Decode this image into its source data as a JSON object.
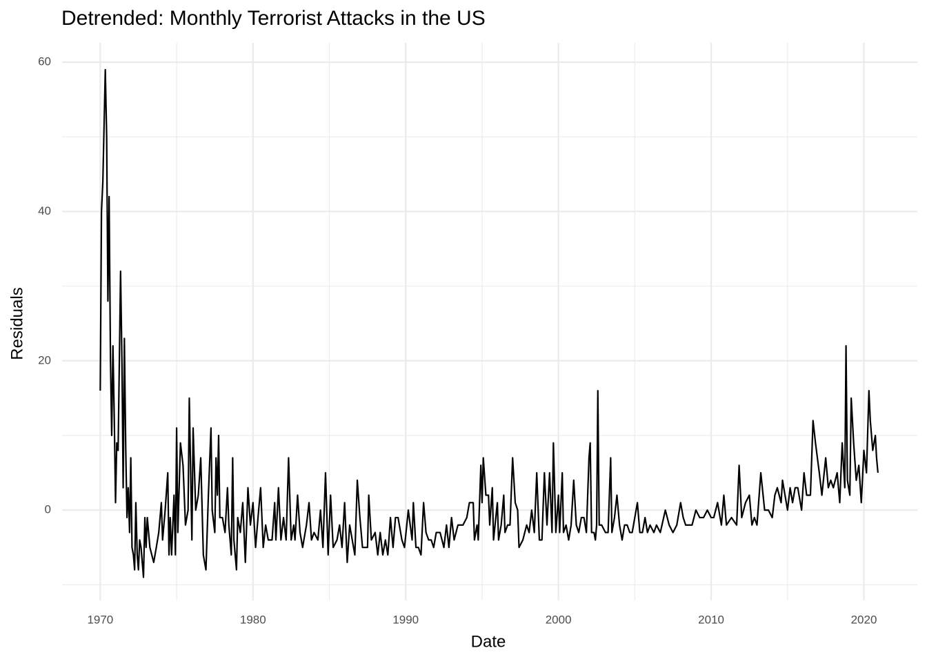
{
  "chart_data": {
    "type": "line",
    "title": "Detrended: Monthly Terrorist Attacks in the US",
    "x_label": "Date",
    "y_label": "Residuals",
    "color": "#000000",
    "grid": true,
    "xlim": [
      1967.5,
      2023.5
    ],
    "xticks": [
      1970,
      1980,
      1990,
      2000,
      2010,
      2020
    ],
    "ylim": [
      -12.1,
      62.6
    ],
    "yticks": [
      0,
      20,
      40,
      60
    ],
    "x": [
      1970.0,
      1970.08,
      1970.17,
      1970.33,
      1970.42,
      1970.5,
      1970.58,
      1970.67,
      1970.75,
      1970.83,
      1970.92,
      1971.0,
      1971.08,
      1971.17,
      1971.25,
      1971.33,
      1971.42,
      1971.5,
      1971.58,
      1971.67,
      1971.75,
      1971.83,
      1971.92,
      1972.0,
      1972.08,
      1972.17,
      1972.25,
      1972.33,
      1972.42,
      1972.5,
      1972.58,
      1972.67,
      1972.83,
      1972.92,
      1973.0,
      1973.08,
      1973.25,
      1973.5,
      1973.67,
      1973.83,
      1974.0,
      1974.08,
      1974.25,
      1974.42,
      1974.5,
      1974.58,
      1974.67,
      1974.83,
      1974.92,
      1975.0,
      1975.08,
      1975.25,
      1975.42,
      1975.58,
      1975.75,
      1975.83,
      1976.0,
      1976.08,
      1976.25,
      1976.42,
      1976.58,
      1976.75,
      1976.92,
      1977.08,
      1977.25,
      1977.33,
      1977.5,
      1977.58,
      1977.67,
      1977.75,
      1977.83,
      1978.0,
      1978.17,
      1978.33,
      1978.42,
      1978.58,
      1978.67,
      1978.75,
      1978.92,
      1979.0,
      1979.17,
      1979.33,
      1979.5,
      1979.67,
      1979.83,
      1980.0,
      1980.17,
      1980.33,
      1980.5,
      1980.67,
      1980.83,
      1981.0,
      1981.25,
      1981.42,
      1981.5,
      1981.67,
      1981.83,
      1982.0,
      1982.17,
      1982.33,
      1982.5,
      1982.67,
      1982.75,
      1982.92,
      1983.08,
      1983.25,
      1983.5,
      1983.67,
      1983.83,
      1984.0,
      1984.25,
      1984.42,
      1984.58,
      1984.75,
      1984.92,
      1985.08,
      1985.25,
      1985.5,
      1985.67,
      1985.83,
      1986.0,
      1986.17,
      1986.33,
      1986.5,
      1986.67,
      1986.83,
      1987.0,
      1987.17,
      1987.5,
      1987.58,
      1987.75,
      1988.0,
      1988.17,
      1988.33,
      1988.5,
      1988.67,
      1988.83,
      1989.0,
      1989.17,
      1989.33,
      1989.5,
      1989.75,
      1989.92,
      1990.17,
      1990.42,
      1990.5,
      1990.67,
      1990.83,
      1991.0,
      1991.17,
      1991.33,
      1991.5,
      1991.67,
      1991.83,
      1992.0,
      1992.25,
      1992.5,
      1992.67,
      1992.83,
      1993.0,
      1993.17,
      1993.42,
      1993.75,
      1994.0,
      1994.17,
      1994.42,
      1994.5,
      1994.67,
      1994.75,
      1994.92,
      1995.0,
      1995.08,
      1995.25,
      1995.42,
      1995.5,
      1995.67,
      1995.75,
      1996.0,
      1996.08,
      1996.25,
      1996.42,
      1996.5,
      1996.67,
      1996.83,
      1997.0,
      1997.17,
      1997.33,
      1997.42,
      1997.67,
      1997.92,
      1998.08,
      1998.25,
      1998.42,
      1998.58,
      1998.75,
      1998.92,
      1999.08,
      1999.25,
      1999.42,
      1999.58,
      1999.67,
      1999.83,
      2000.0,
      2000.08,
      2000.25,
      2000.33,
      2000.5,
      2000.67,
      2000.83,
      2001.0,
      2001.17,
      2001.33,
      2001.5,
      2001.67,
      2001.83,
      2002.0,
      2002.08,
      2002.17,
      2002.33,
      2002.42,
      2002.5,
      2002.58,
      2002.67,
      2002.83,
      2003.08,
      2003.25,
      2003.42,
      2003.5,
      2003.67,
      2003.83,
      2004.0,
      2004.17,
      2004.33,
      2004.5,
      2004.67,
      2004.83,
      2005.17,
      2005.33,
      2005.5,
      2005.67,
      2005.83,
      2006.0,
      2006.25,
      2006.42,
      2006.67,
      2007.0,
      2007.25,
      2007.5,
      2007.75,
      2008.0,
      2008.17,
      2008.33,
      2008.5,
      2008.75,
      2009.0,
      2009.25,
      2009.5,
      2009.75,
      2010.0,
      2010.17,
      2010.42,
      2010.67,
      2010.83,
      2011.0,
      2011.33,
      2011.67,
      2011.83,
      2012.0,
      2012.25,
      2012.5,
      2012.67,
      2012.83,
      2013.0,
      2013.25,
      2013.5,
      2013.75,
      2014.0,
      2014.17,
      2014.33,
      2014.58,
      2014.67,
      2015.0,
      2015.17,
      2015.33,
      2015.5,
      2015.67,
      2015.92,
      2016.08,
      2016.25,
      2016.5,
      2016.67,
      2016.83,
      2017.08,
      2017.25,
      2017.5,
      2017.67,
      2017.83,
      2018.0,
      2018.25,
      2018.42,
      2018.58,
      2018.75,
      2018.83,
      2018.92,
      2019.08,
      2019.17,
      2019.33,
      2019.5,
      2019.67,
      2019.83,
      2020.0,
      2020.17,
      2020.33,
      2020.42,
      2020.58,
      2020.75,
      2020.83,
      2020.92
    ],
    "values": [
      16,
      40,
      44,
      59,
      50,
      28,
      42,
      20,
      10,
      22,
      12,
      1,
      9,
      8,
      20,
      32,
      20,
      3,
      23,
      8,
      -1,
      3,
      -3,
      7,
      -5,
      -6,
      -8,
      1,
      -6,
      -8,
      -4,
      -5,
      -9,
      -1,
      -5,
      -1,
      -5,
      -7,
      -5,
      -3,
      1,
      -4,
      0,
      5,
      -6,
      -1,
      -6,
      2,
      -6,
      11,
      -3,
      9,
      6,
      -2,
      0,
      15,
      -4,
      11,
      0,
      2,
      7,
      -6,
      -8,
      2,
      11,
      0,
      -3,
      7,
      2,
      10,
      -1,
      -1,
      -3,
      3,
      -2,
      -6,
      7,
      -4,
      -8,
      -1,
      -3,
      1,
      -7,
      3,
      -2,
      1,
      -5,
      -1,
      3,
      -5,
      -2,
      -4,
      -4,
      1,
      -4,
      3,
      -4,
      -1,
      -4,
      7,
      -4,
      -2,
      -4,
      2,
      -3,
      -5,
      -2,
      1,
      -4,
      -3,
      -4,
      0,
      -5,
      5,
      -6,
      2,
      -5,
      -4,
      -2,
      -5,
      1,
      -7,
      -2,
      -4,
      -6,
      4,
      -1,
      -5,
      -5,
      2,
      -4,
      -3,
      -6,
      -3,
      -6,
      -4,
      -6,
      -1,
      -5,
      -1,
      -1,
      -4,
      -5,
      0,
      -4,
      1,
      -5,
      -5,
      -6,
      1,
      -3,
      -4,
      -4,
      -5,
      -3,
      -3,
      -5,
      -2,
      -5,
      -1,
      -4,
      -2,
      -2,
      -1,
      1,
      1,
      -4,
      -2,
      -4,
      6,
      1,
      7,
      2,
      2,
      -2,
      3,
      -4,
      1,
      -4,
      -2,
      2,
      -3,
      -2,
      -2,
      7,
      1,
      0,
      -5,
      -4,
      -2,
      -3,
      0,
      -3,
      5,
      -4,
      -4,
      5,
      -2,
      5,
      -3,
      9,
      -3,
      2,
      -3,
      5,
      -3,
      -2,
      -4,
      -2,
      4,
      -2,
      -3,
      -1,
      -1,
      -3,
      7,
      9,
      -3,
      -3,
      -4,
      -2,
      16,
      -2,
      -2,
      -3,
      -3,
      7,
      -3,
      -1,
      2,
      -2,
      -4,
      -2,
      -2,
      -3,
      -3,
      1,
      -3,
      -3,
      -1,
      -3,
      -2,
      -3,
      -2,
      -3,
      0,
      -2,
      -3,
      -2,
      1,
      -1,
      -2,
      -2,
      -2,
      0,
      -1,
      -1,
      0,
      -1,
      -1,
      1,
      -2,
      2,
      -2,
      -1,
      -2,
      6,
      -1,
      1,
      2,
      -2,
      -1,
      -2,
      5,
      0,
      0,
      -1,
      2,
      3,
      1,
      4,
      0,
      3,
      1,
      3,
      3,
      0,
      5,
      2,
      2,
      12,
      9,
      5,
      2,
      7,
      3,
      4,
      3,
      5,
      1,
      9,
      3,
      22,
      4,
      2,
      15,
      9,
      4,
      6,
      1,
      8,
      5,
      16,
      12,
      8,
      10,
      7,
      5
    ]
  }
}
